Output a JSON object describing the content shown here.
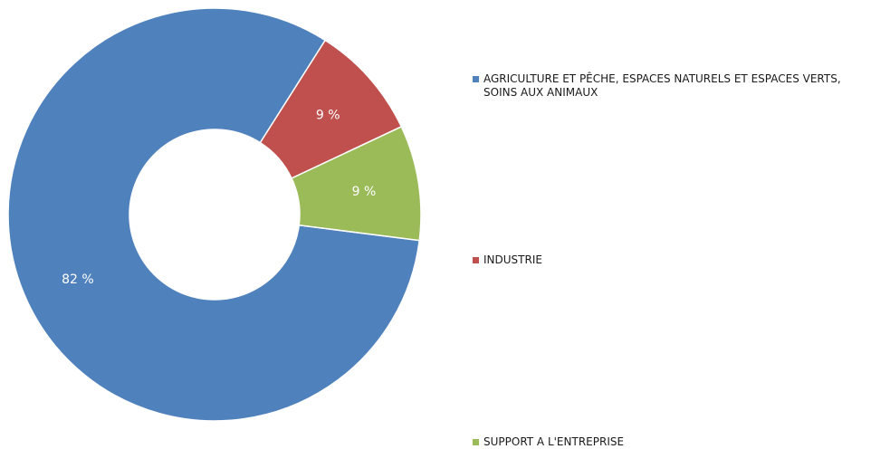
{
  "chart_data": {
    "type": "pie",
    "donut": true,
    "legend_position": "right",
    "slices": [
      {
        "name": "AGRICULTURE ET PÊCHE, ESPACES NATURELS ET ESPACES VERTS,\nSOINS AUX ANIMAUX",
        "value": 82,
        "label": "82 %",
        "color": "#4F81BD"
      },
      {
        "name": "INDUSTRIE",
        "value": 9,
        "label": "9 %",
        "color": "#C0504D"
      },
      {
        "name": "SUPPORT A L'ENTREPRISE",
        "value": 9,
        "label": "9 %",
        "color": "#9BBB59"
      }
    ]
  }
}
